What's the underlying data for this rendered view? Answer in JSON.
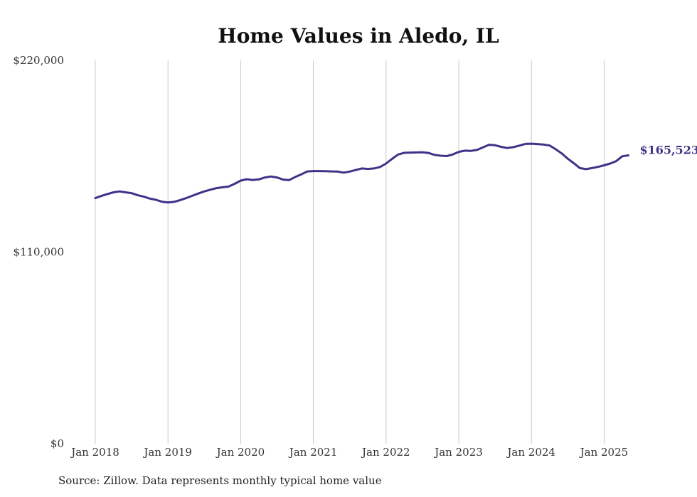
{
  "chart_data": {
    "type": "line",
    "title": "Home Values in Aledo, IL",
    "xlabel": "",
    "ylabel": "",
    "ylim": [
      0,
      220000
    ],
    "y_tick_labels": [
      "$0",
      "$110,000",
      "$220,000"
    ],
    "y_tick_values": [
      0,
      110000,
      220000
    ],
    "x_tick_labels": [
      "Jan 2018",
      "Jan 2019",
      "Jan 2020",
      "Jan 2021",
      "Jan 2022",
      "Jan 2023",
      "Jan 2024",
      "Jan 2025"
    ],
    "x_tick_values": [
      "2018-01",
      "2019-01",
      "2020-01",
      "2021-01",
      "2022-01",
      "2023-01",
      "2024-01",
      "2025-01"
    ],
    "grid": "vertical",
    "end_label": "$165,523",
    "series": [
      {
        "color": "#3d3388",
        "points": [
          [
            "2018-01",
            141000
          ],
          [
            "2018-02",
            142200
          ],
          [
            "2018-03",
            143300
          ],
          [
            "2018-04",
            144300
          ],
          [
            "2018-05",
            144800
          ],
          [
            "2018-06",
            144300
          ],
          [
            "2018-07",
            143800
          ],
          [
            "2018-08",
            142600
          ],
          [
            "2018-09",
            141800
          ],
          [
            "2018-10",
            140700
          ],
          [
            "2018-11",
            140000
          ],
          [
            "2018-12",
            138900
          ],
          [
            "2019-01",
            138500
          ],
          [
            "2019-02",
            138800
          ],
          [
            "2019-03",
            139800
          ],
          [
            "2019-04",
            141000
          ],
          [
            "2019-05",
            142300
          ],
          [
            "2019-06",
            143600
          ],
          [
            "2019-07",
            144800
          ],
          [
            "2019-08",
            145800
          ],
          [
            "2019-09",
            146700
          ],
          [
            "2019-10",
            147200
          ],
          [
            "2019-11",
            147600
          ],
          [
            "2019-12",
            149200
          ],
          [
            "2020-01",
            151000
          ],
          [
            "2020-02",
            151800
          ],
          [
            "2020-03",
            151400
          ],
          [
            "2020-04",
            151700
          ],
          [
            "2020-05",
            152800
          ],
          [
            "2020-06",
            153400
          ],
          [
            "2020-07",
            152800
          ],
          [
            "2020-08",
            151600
          ],
          [
            "2020-09",
            151300
          ],
          [
            "2020-10",
            153100
          ],
          [
            "2020-11",
            154600
          ],
          [
            "2020-12",
            156300
          ],
          [
            "2021-01",
            156500
          ],
          [
            "2021-02",
            156500
          ],
          [
            "2021-03",
            156400
          ],
          [
            "2021-04",
            156300
          ],
          [
            "2021-05",
            156200
          ],
          [
            "2021-06",
            155600
          ],
          [
            "2021-07",
            156200
          ],
          [
            "2021-08",
            157100
          ],
          [
            "2021-09",
            158000
          ],
          [
            "2021-10",
            157700
          ],
          [
            "2021-11",
            158000
          ],
          [
            "2021-12",
            158800
          ],
          [
            "2022-01",
            160800
          ],
          [
            "2022-02",
            163500
          ],
          [
            "2022-03",
            166000
          ],
          [
            "2022-04",
            167000
          ],
          [
            "2022-05",
            167100
          ],
          [
            "2022-06",
            167200
          ],
          [
            "2022-07",
            167300
          ],
          [
            "2022-08",
            166900
          ],
          [
            "2022-09",
            165800
          ],
          [
            "2022-10",
            165300
          ],
          [
            "2022-11",
            165100
          ],
          [
            "2022-12",
            166000
          ],
          [
            "2023-01",
            167500
          ],
          [
            "2023-02",
            168200
          ],
          [
            "2023-03",
            168100
          ],
          [
            "2023-04",
            168600
          ],
          [
            "2023-05",
            170100
          ],
          [
            "2023-06",
            171600
          ],
          [
            "2023-07",
            171300
          ],
          [
            "2023-08",
            170400
          ],
          [
            "2023-09",
            169700
          ],
          [
            "2023-10",
            170200
          ],
          [
            "2023-11",
            171100
          ],
          [
            "2023-12",
            172100
          ],
          [
            "2024-01",
            172200
          ],
          [
            "2024-02",
            172000
          ],
          [
            "2024-03",
            171700
          ],
          [
            "2024-04",
            171200
          ],
          [
            "2024-05",
            169000
          ],
          [
            "2024-06",
            166600
          ],
          [
            "2024-07",
            163600
          ],
          [
            "2024-08",
            161000
          ],
          [
            "2024-09",
            158200
          ],
          [
            "2024-10",
            157600
          ],
          [
            "2024-11",
            158200
          ],
          [
            "2024-12",
            158900
          ],
          [
            "2025-01",
            159800
          ],
          [
            "2025-02",
            160800
          ],
          [
            "2025-03",
            162200
          ],
          [
            "2025-04",
            165000
          ],
          [
            "2025-05",
            165523
          ]
        ]
      }
    ]
  },
  "footer": {
    "source": "Source: Zillow. Data represents monthly typical home value"
  }
}
